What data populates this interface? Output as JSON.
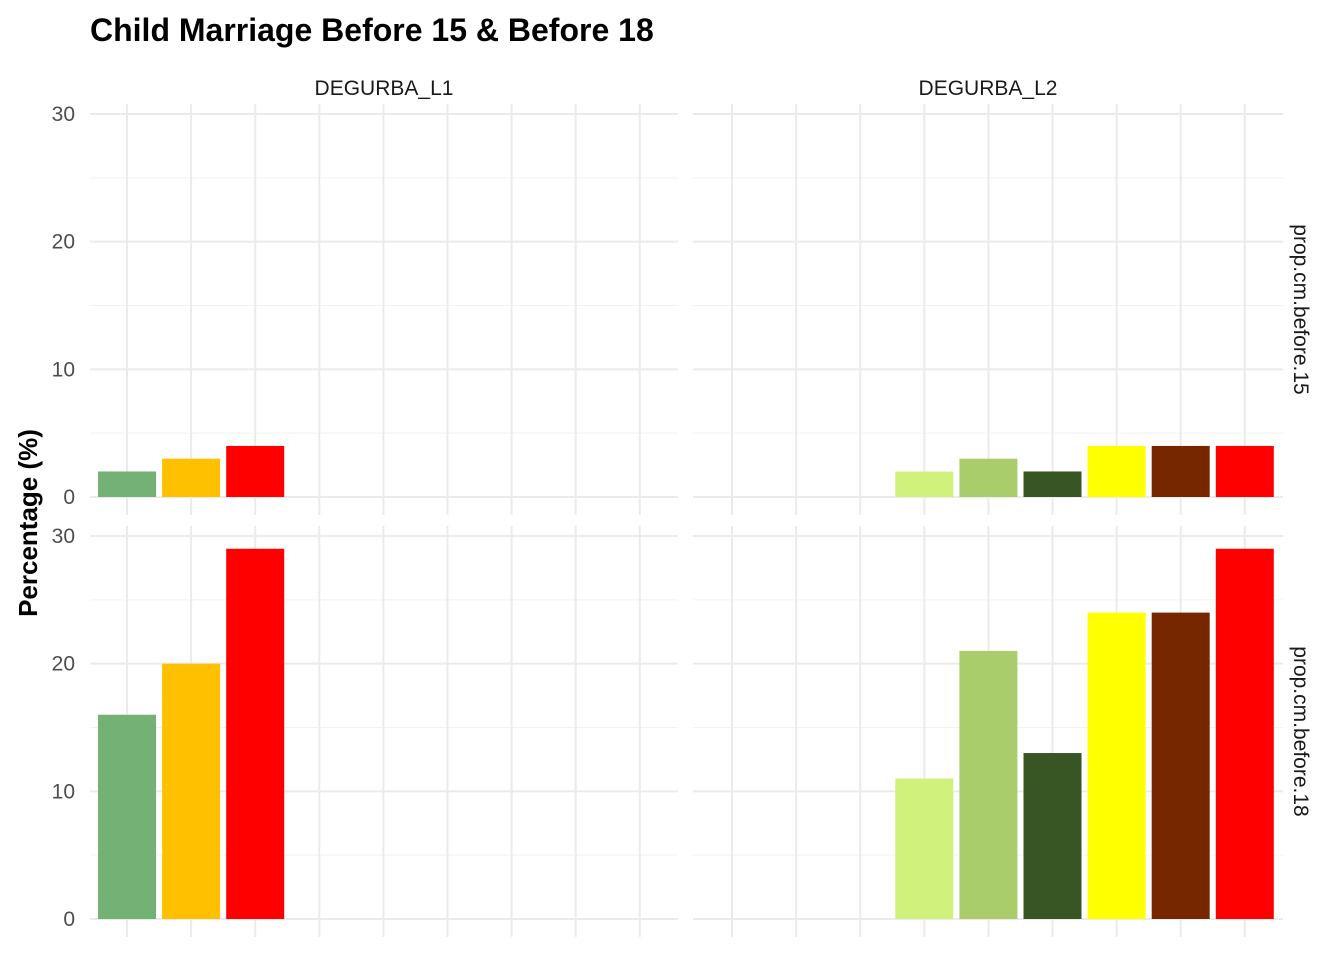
{
  "chart_data": {
    "type": "bar",
    "title": "Child Marriage Before 15 & Before 18",
    "ylabel": "Percentage (%)",
    "xlabel": "",
    "ylim": [
      0,
      30
    ],
    "y_ticks": [
      0,
      10,
      20,
      30
    ],
    "grid": true,
    "legend": "none",
    "column_facets": [
      "DEGURBA_L1",
      "DEGURBA_L2"
    ],
    "row_facets": [
      "prop.cm.before.15",
      "prop.cm.before.18"
    ],
    "panels": [
      {
        "column": "DEGURBA_L1",
        "row": "prop.cm.before.15",
        "bars": [
          {
            "slot": 0,
            "value": 2,
            "color": "#74B174"
          },
          {
            "slot": 1,
            "value": 3,
            "color": "#FFC000"
          },
          {
            "slot": 2,
            "value": 4,
            "color": "#FF0000"
          }
        ]
      },
      {
        "column": "DEGURBA_L2",
        "row": "prop.cm.before.15",
        "bars": [
          {
            "slot": 3,
            "value": 2,
            "color": "#D0F27D"
          },
          {
            "slot": 4,
            "value": 3,
            "color": "#A9CD6A"
          },
          {
            "slot": 5,
            "value": 2,
            "color": "#375623"
          },
          {
            "slot": 6,
            "value": 4,
            "color": "#FFFF00"
          },
          {
            "slot": 7,
            "value": 4,
            "color": "#762700"
          },
          {
            "slot": 8,
            "value": 4,
            "color": "#FF0000"
          }
        ]
      },
      {
        "column": "DEGURBA_L1",
        "row": "prop.cm.before.18",
        "bars": [
          {
            "slot": 0,
            "value": 16,
            "color": "#74B174"
          },
          {
            "slot": 1,
            "value": 20,
            "color": "#FFC000"
          },
          {
            "slot": 2,
            "value": 29,
            "color": "#FF0000"
          }
        ]
      },
      {
        "column": "DEGURBA_L2",
        "row": "prop.cm.before.18",
        "bars": [
          {
            "slot": 3,
            "value": 11,
            "color": "#D0F27D"
          },
          {
            "slot": 4,
            "value": 21,
            "color": "#A9CD6A"
          },
          {
            "slot": 5,
            "value": 13,
            "color": "#375623"
          },
          {
            "slot": 6,
            "value": 24,
            "color": "#FFFF00"
          },
          {
            "slot": 7,
            "value": 24,
            "color": "#762700"
          },
          {
            "slot": 8,
            "value": 29,
            "color": "#FF0000"
          }
        ]
      }
    ]
  }
}
